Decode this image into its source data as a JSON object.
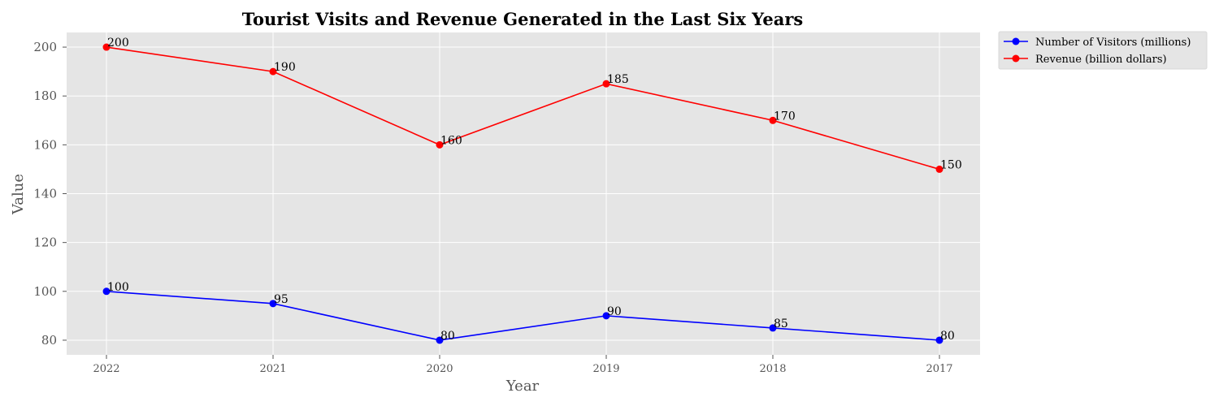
{
  "chart_data": {
    "type": "line",
    "title": "Tourist Visits and Revenue Generated in the Last Six Years",
    "xlabel": "Year",
    "ylabel": "Value",
    "categories": [
      "2022",
      "2021",
      "2020",
      "2019",
      "2018",
      "2017"
    ],
    "ylim": [
      74,
      206
    ],
    "yticks": [
      80,
      100,
      120,
      140,
      160,
      180,
      200
    ],
    "grid": true,
    "legend_position": "outside-top-right",
    "series": [
      {
        "name": "Number of Visitors (millions)",
        "color": "#0000ff",
        "values": [
          100,
          95,
          80,
          90,
          85,
          80
        ]
      },
      {
        "name": "Revenue (billion dollars)",
        "color": "#ff0000",
        "values": [
          200,
          190,
          160,
          185,
          170,
          150
        ]
      }
    ],
    "plot_background": "#e5e5e5",
    "grid_color": "#ffffff"
  }
}
